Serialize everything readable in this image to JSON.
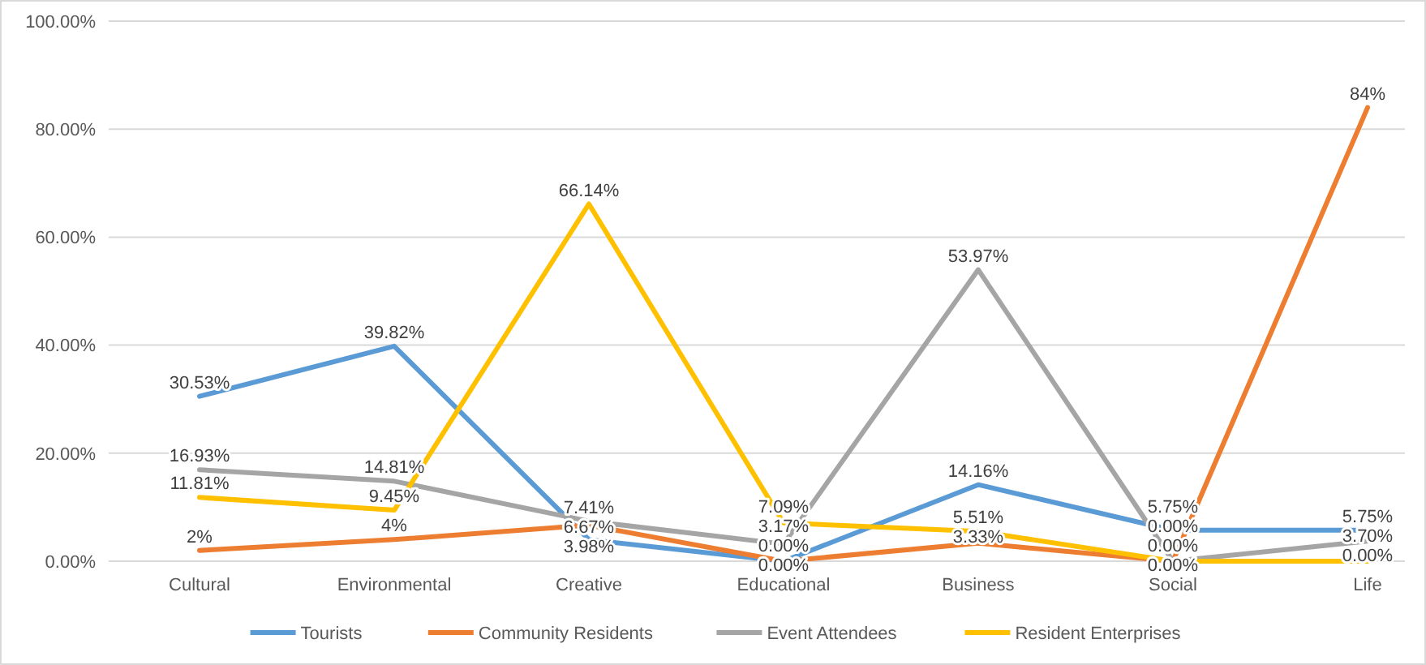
{
  "chart_data": {
    "type": "line",
    "categories": [
      "Cultural",
      "Environmental",
      "Creative",
      "Educational",
      "Business",
      "Social",
      "Life"
    ],
    "series": [
      {
        "name": "Tourists",
        "color": "#5b9bd5",
        "values": [
          30.53,
          39.82,
          3.98,
          0,
          14.16,
          5.75,
          5.75
        ],
        "value_labels": [
          "30.53%",
          "39.82%",
          "3.98%",
          "0.00%",
          "14.16%",
          "5.75%",
          "5.75%"
        ]
      },
      {
        "name": "Community Residents",
        "color": "#ed7d31",
        "values": [
          2,
          4,
          6.67,
          0,
          3.33,
          0,
          84
        ],
        "value_labels": [
          "2%",
          "4%",
          "6.67%",
          "0.00%",
          "3.33%",
          "0.00%",
          "84%"
        ]
      },
      {
        "name": "Event Attendees",
        "color": "#a5a5a5",
        "values": [
          16.93,
          14.81,
          7.41,
          3.17,
          53.97,
          0,
          3.7
        ],
        "value_labels": [
          "16.93%",
          "14.81%",
          "7.41%",
          "3.17%",
          "53.97%",
          "0.00%",
          "3.70%"
        ]
      },
      {
        "name": "Resident Enterprises",
        "color": "#ffc000",
        "values": [
          11.81,
          9.45,
          66.14,
          7.09,
          5.51,
          0,
          0
        ],
        "value_labels": [
          "11.81%",
          "9.45%",
          "66.14%",
          "7.09%",
          "5.51%",
          "0.00%",
          "0.00%"
        ]
      }
    ],
    "ylim": [
      0,
      100
    ],
    "yticks": [
      {
        "value": 0,
        "label": "0.00%"
      },
      {
        "value": 20,
        "label": "20.00%"
      },
      {
        "value": 40,
        "label": "40.00%"
      },
      {
        "value": 60,
        "label": "60.00%"
      },
      {
        "value": 80,
        "label": "80.00%"
      },
      {
        "value": 100,
        "label": "100.00%"
      }
    ],
    "grid": "y",
    "legend": "bottom",
    "marker": "none",
    "line_style": "solid"
  }
}
